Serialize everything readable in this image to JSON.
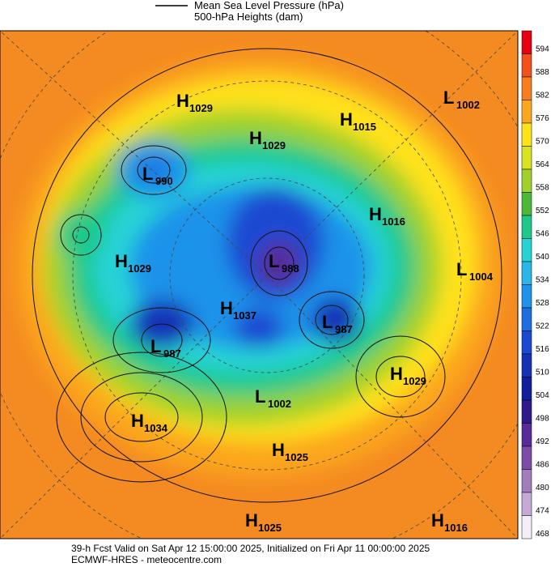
{
  "header": {
    "legend_lines": [
      "Mean Sea Level Pressure (hPa)",
      "500-hPa Heights (dam)"
    ]
  },
  "colorbar": {
    "ticks": [
      594,
      588,
      582,
      576,
      570,
      564,
      558,
      552,
      546,
      540,
      534,
      528,
      522,
      516,
      510,
      504,
      498,
      492,
      486,
      480,
      474,
      468
    ],
    "colors": [
      "#e60012",
      "#f25119",
      "#f77e1f",
      "#fba61f",
      "#ffe21a",
      "#d9e223",
      "#9fd12a",
      "#4cb83a",
      "#1cc98a",
      "#25d3d6",
      "#29b6e8",
      "#1f93ea",
      "#1d6fe1",
      "#1a4ad2",
      "#1532b6",
      "#101e9c",
      "#2e1a8b",
      "#592a99",
      "#7e4ba8",
      "#a27cbb",
      "#c6aad6",
      "#f4eef7"
    ]
  },
  "centers": [
    {
      "kind": "H",
      "value": 1029
    },
    {
      "kind": "L",
      "value": 1002
    },
    {
      "kind": "H",
      "value": 1015
    },
    {
      "kind": "H",
      "value": 1029
    },
    {
      "kind": "L",
      "value": 990
    },
    {
      "kind": "H",
      "value": 1016
    },
    {
      "kind": "H",
      "value": 1029
    },
    {
      "kind": "L",
      "value": 988
    },
    {
      "kind": "L",
      "value": 1004
    },
    {
      "kind": "H",
      "value": 1037
    },
    {
      "kind": "L",
      "value": 987
    },
    {
      "kind": "L",
      "value": 987
    },
    {
      "kind": "H",
      "value": 1029
    },
    {
      "kind": "L",
      "value": 1002
    },
    {
      "kind": "H",
      "value": 1034
    },
    {
      "kind": "H",
      "value": 1025
    },
    {
      "kind": "H",
      "value": 1025
    },
    {
      "kind": "H",
      "value": 1016
    }
  ],
  "footer": {
    "lines": [
      "39-h Fcst Valid on Sat Apr 12 15:00:00 2025, Initialized on Fri Apr 11 00:00:00 2025",
      "ECMWF-HRES  - meteocentre.com"
    ]
  }
}
